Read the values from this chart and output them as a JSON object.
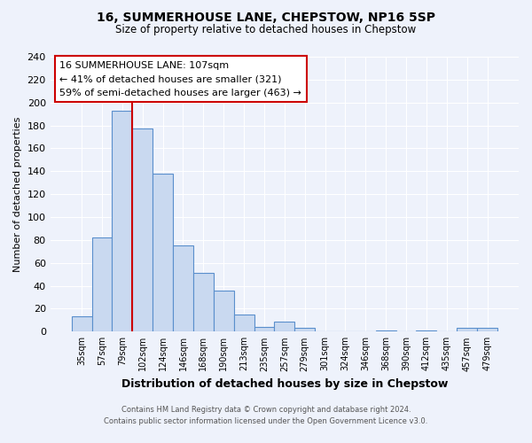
{
  "title": "16, SUMMERHOUSE LANE, CHEPSTOW, NP16 5SP",
  "subtitle": "Size of property relative to detached houses in Chepstow",
  "xlabel": "Distribution of detached houses by size in Chepstow",
  "ylabel": "Number of detached properties",
  "bar_labels": [
    "35sqm",
    "57sqm",
    "79sqm",
    "102sqm",
    "124sqm",
    "146sqm",
    "168sqm",
    "190sqm",
    "213sqm",
    "235sqm",
    "257sqm",
    "279sqm",
    "301sqm",
    "324sqm",
    "346sqm",
    "368sqm",
    "390sqm",
    "412sqm",
    "435sqm",
    "457sqm",
    "479sqm"
  ],
  "bar_values": [
    13,
    82,
    193,
    177,
    138,
    75,
    51,
    36,
    15,
    4,
    9,
    3,
    0,
    0,
    0,
    1,
    0,
    1,
    0,
    3,
    3
  ],
  "bar_color": "#c9d9f0",
  "bar_edge_color": "#5a8fcc",
  "property_line_index": 3,
  "property_line_color": "#cc0000",
  "ylim": [
    0,
    240
  ],
  "yticks": [
    0,
    20,
    40,
    60,
    80,
    100,
    120,
    140,
    160,
    180,
    200,
    220,
    240
  ],
  "annotation_box_text": "16 SUMMERHOUSE LANE: 107sqm\n← 41% of detached houses are smaller (321)\n59% of semi-detached houses are larger (463) →",
  "footer_line1": "Contains HM Land Registry data © Crown copyright and database right 2024.",
  "footer_line2": "Contains public sector information licensed under the Open Government Licence v3.0.",
  "bg_color": "#eef2fb",
  "grid_color": "#c8d4ee"
}
